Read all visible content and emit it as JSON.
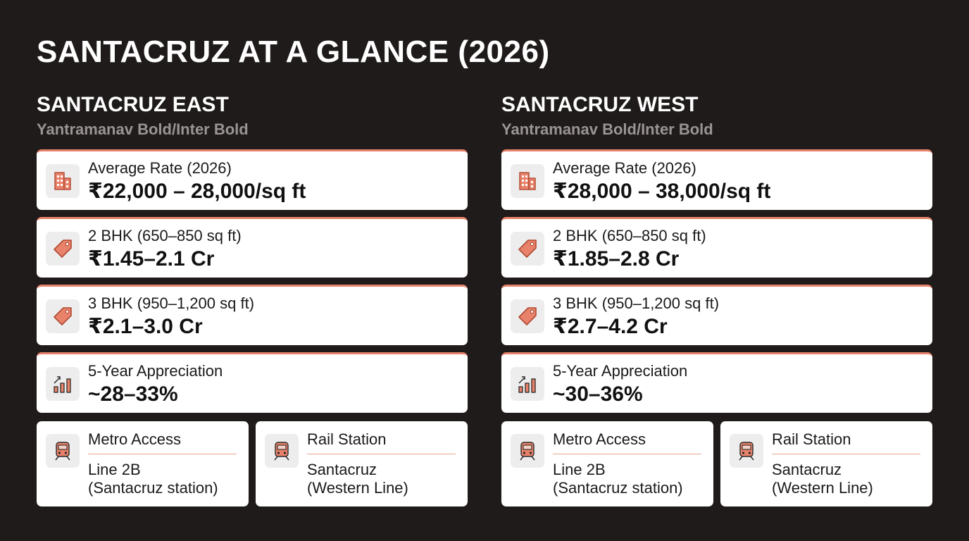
{
  "title": "SANTACRUZ AT A GLANCE (2026)",
  "colors": {
    "accent": "#e8826a",
    "background": "#1f1b1a",
    "card": "#ffffff"
  },
  "columns": [
    {
      "title": "SANTACRUZ EAST",
      "subtitle": "Yantramanav Bold/Inter Bold",
      "cards": [
        {
          "icon": "building-icon",
          "label": "Average Rate (2026)",
          "value": "₹22,000 – 28,000/sq ft"
        },
        {
          "icon": "price-tag-icon",
          "label": "2 BHK (650–850 sq ft)",
          "value": "₹1.45–2.1 Cr"
        },
        {
          "icon": "price-tag-icon",
          "label": "3 BHK (950–1,200 sq ft)",
          "value": "₹2.1–3.0 Cr"
        },
        {
          "icon": "growth-chart-icon",
          "label": "5-Year Appreciation",
          "value": "~28–33%"
        }
      ],
      "transit": [
        {
          "icon": "train-icon",
          "label": "Metro Access",
          "line1": "Line 2B",
          "line2": "(Santacruz station)"
        },
        {
          "icon": "train-icon",
          "label": "Rail Station",
          "line1": "Santacruz",
          "line2": "(Western Line)"
        }
      ]
    },
    {
      "title": "SANTACRUZ WEST",
      "subtitle": "Yantramanav Bold/Inter Bold",
      "cards": [
        {
          "icon": "building-icon",
          "label": "Average Rate (2026)",
          "value": "₹28,000 – 38,000/sq ft"
        },
        {
          "icon": "price-tag-icon",
          "label": "2 BHK (650–850 sq ft)",
          "value": "₹1.85–2.8 Cr"
        },
        {
          "icon": "price-tag-icon",
          "label": "3 BHK (950–1,200 sq ft)",
          "value": "₹2.7–4.2 Cr"
        },
        {
          "icon": "growth-chart-icon",
          "label": "5-Year Appreciation",
          "value": "~30–36%"
        }
      ],
      "transit": [
        {
          "icon": "train-icon",
          "label": "Metro Access",
          "line1": "Line 2B",
          "line2": "(Santacruz station)"
        },
        {
          "icon": "train-icon",
          "label": "Rail Station",
          "line1": "Santacruz",
          "line2": "(Western Line)"
        }
      ]
    }
  ]
}
